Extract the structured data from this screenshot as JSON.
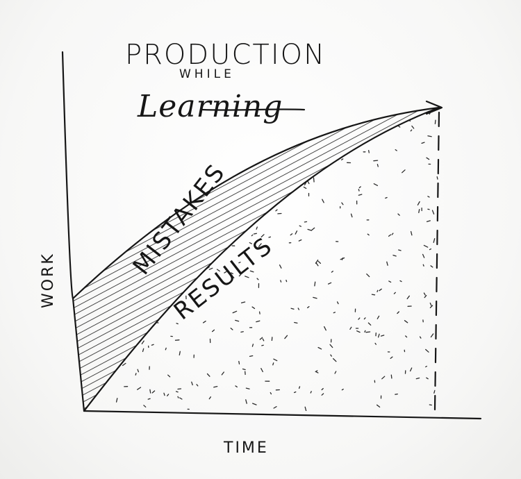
{
  "title": {
    "line1": "PRODUCTION",
    "line2": "WHILE",
    "line3": "Learning"
  },
  "axes": {
    "x_label": "TIME",
    "y_label": "WORK"
  },
  "regions": {
    "upper": "MISTAKES",
    "lower": "RESULTS"
  }
}
